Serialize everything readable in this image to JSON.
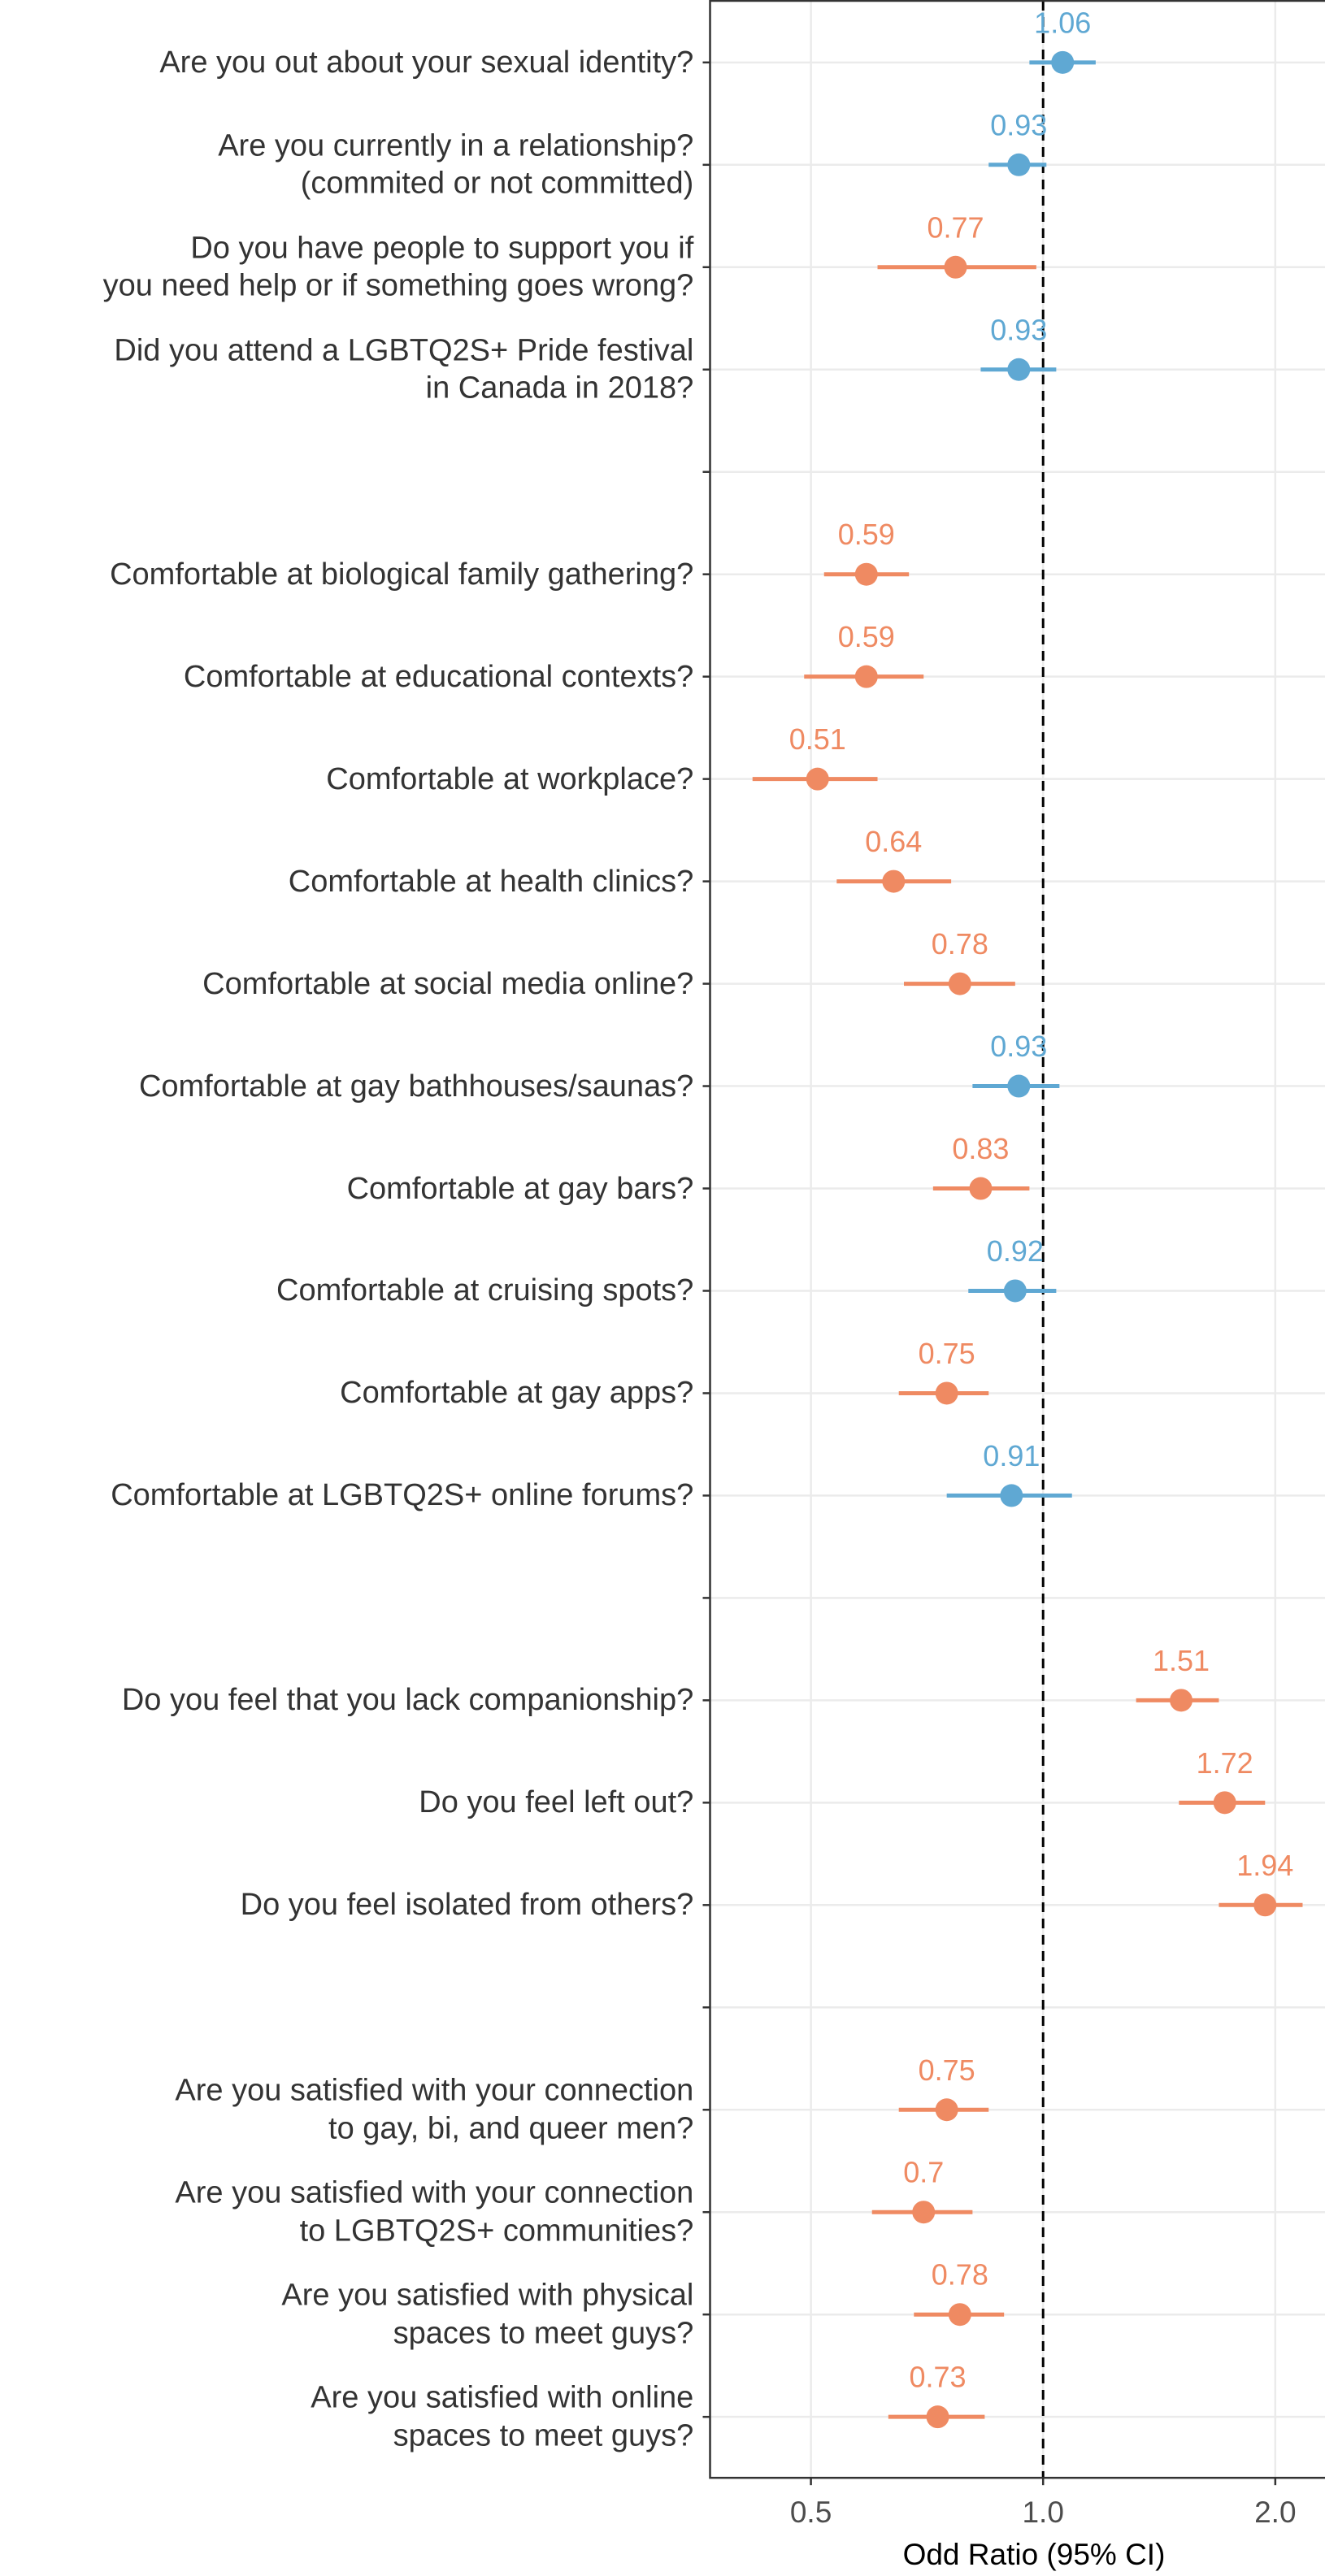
{
  "chart_data": {
    "type": "forest",
    "x_label": "Odd Ratio (95% CI)",
    "categories": [
      "Are you out about your sexual identity?",
      "Are you currently in a relationship?\n(commited or not committed)",
      "Do you have people to support you if\nyou need help or if something goes wrong?",
      "Did you attend a LGBTQ2S+ Pride festival\nin Canada in 2018?",
      null,
      "Comfortable at biological family gathering?",
      "Comfortable at educational contexts?",
      "Comfortable at workplace?",
      "Comfortable at health clinics?",
      "Comfortable at social media online?",
      "Comfortable at gay bathhouses/saunas?",
      "Comfortable at gay bars?",
      "Comfortable at cruising spots?",
      "Comfortable at gay apps?",
      "Comfortable at LGBTQ2S+ online forums?",
      null,
      "Do you feel that you lack companionship?",
      "Do you feel left out?",
      "Do you feel isolated from others?",
      null,
      "Are you satisfied with your connection\nto gay, bi, and queer men?",
      "Are you satisfied with your connection\nto LGBTQ2S+ communities?",
      "Are you satisfied with physical\nspaces to meet guys?",
      "Are you satisfied with online\nspaces to meet guys?"
    ],
    "values": [
      1.06,
      0.93,
      0.77,
      0.93,
      null,
      0.59,
      0.59,
      0.51,
      0.64,
      0.78,
      0.93,
      0.83,
      0.92,
      0.75,
      0.91,
      null,
      1.51,
      1.72,
      1.94,
      null,
      0.75,
      0.7,
      0.78,
      0.73
    ],
    "ci_low": [
      0.96,
      0.85,
      0.61,
      0.83,
      null,
      0.52,
      0.49,
      0.42,
      0.54,
      0.66,
      0.81,
      0.72,
      0.8,
      0.65,
      0.75,
      null,
      1.32,
      1.5,
      1.69,
      null,
      0.65,
      0.6,
      0.68,
      0.63
    ],
    "ci_high": [
      1.17,
      1.01,
      0.98,
      1.04,
      null,
      0.67,
      0.7,
      0.61,
      0.76,
      0.92,
      1.05,
      0.96,
      1.04,
      0.85,
      1.09,
      null,
      1.69,
      1.94,
      2.17,
      null,
      0.85,
      0.81,
      0.89,
      0.84
    ],
    "point_colors": [
      "#5fa8d3",
      "#5fa8d3",
      "#ef8a62",
      "#5fa8d3",
      null,
      "#ef8a62",
      "#ef8a62",
      "#ef8a62",
      "#ef8a62",
      "#ef8a62",
      "#5fa8d3",
      "#ef8a62",
      "#5fa8d3",
      "#ef8a62",
      "#5fa8d3",
      null,
      "#ef8a62",
      "#ef8a62",
      "#ef8a62",
      null,
      "#ef8a62",
      "#ef8a62",
      "#ef8a62",
      "#ef8a62"
    ],
    "xlim": [
      0.37,
      2.32
    ],
    "xscale": "log",
    "xticks": [
      0.5,
      {
        "value": 1,
        "label": "1.0"
      },
      {
        "value": 2,
        "label": "2.0"
      }
    ],
    "reference_line": 1,
    "grid": true
  }
}
